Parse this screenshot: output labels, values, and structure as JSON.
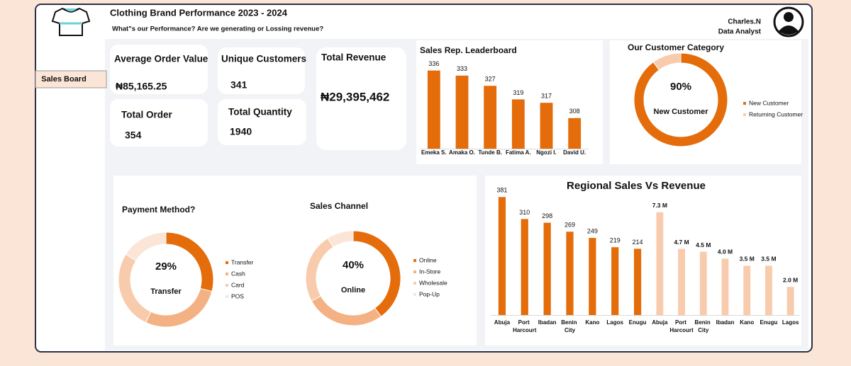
{
  "header": {
    "title": "Clothing Brand Performance 2023 - 2024",
    "subtitle": "What\"s our Performance? Are we generating or Lossing revenue?",
    "user_name": "Charles.N",
    "user_role": "Data Analyst"
  },
  "nav": [
    "Sales Board"
  ],
  "kpis": [
    {
      "label": "Average Order Value",
      "value": "₦85,165.25"
    },
    {
      "label": "Total Order",
      "value": 354
    },
    {
      "label": "Unique Customers",
      "value": 341
    },
    {
      "label": "Total Quantity",
      "value": 1940
    },
    {
      "label": "Total Revenue",
      "value": "₦29,395,462"
    }
  ],
  "chart_data": [
    {
      "type": "bar",
      "title": "Sales Rep. Leaderboard",
      "categories": [
        "Emeka S.",
        "Amaka O.",
        "Tunde B.",
        "Fatima A.",
        "Ngozi I.",
        "David U."
      ],
      "values": [
        336,
        333,
        327,
        319,
        317,
        308
      ],
      "color": "#e46c0a",
      "ylim": [
        290,
        340
      ]
    },
    {
      "type": "donut",
      "title": "Our Customer Category",
      "categories": [
        "New Customer",
        "Returning Customer"
      ],
      "values": [
        90,
        10
      ],
      "colors": [
        "#e46c0a",
        "#f8cbad"
      ],
      "center_text": "90%",
      "center_caption": "New Customer"
    },
    {
      "type": "donut",
      "title": "Payment Method?",
      "categories": [
        "Transfer",
        "Cash",
        "Card",
        "POS"
      ],
      "values": [
        29,
        28,
        27,
        16
      ],
      "colors": [
        "#e46c0a",
        "#f4b183",
        "#f8cbad",
        "#fbe5d6"
      ],
      "center_text": "29%",
      "center_caption": "Transfer"
    },
    {
      "type": "donut",
      "title": "Sales Channel",
      "categories": [
        "Online",
        "In-Store",
        "Wholesale",
        "Pop-Up"
      ],
      "values": [
        40,
        27,
        24,
        9
      ],
      "colors": [
        "#e46c0a",
        "#f4b183",
        "#f8cbad",
        "#fbe5d6"
      ],
      "center_text": "40%",
      "center_caption": "Online"
    },
    {
      "type": "grouped-bar",
      "title": "Regional Sales Vs Revenue",
      "groups": [
        {
          "categories": [
            "Abuja",
            "Port Harcourt",
            "Ibadan",
            "Benin City",
            "Kano",
            "Lagos",
            "Enugu"
          ],
          "values": [
            381,
            310,
            298,
            269,
            249,
            219,
            214
          ],
          "color": "#e46c0a",
          "ylim": [
            0,
            400
          ]
        },
        {
          "categories": [
            "Abuja",
            "Port Harcourt",
            "Benin City",
            "Ibadan",
            "Kano",
            "Enugu",
            "Lagos"
          ],
          "values": [
            7300000,
            4700000,
            4500000,
            4000000,
            3500000,
            3500000,
            2000000
          ],
          "value_labels": [
            "7.3 M",
            "4.7 M",
            "4.5 M",
            "4.0 M",
            "3.5 M",
            "3.5 M",
            "2.0 M"
          ],
          "color": "#f8cbad",
          "ylim": [
            0,
            8800000
          ]
        }
      ]
    }
  ]
}
